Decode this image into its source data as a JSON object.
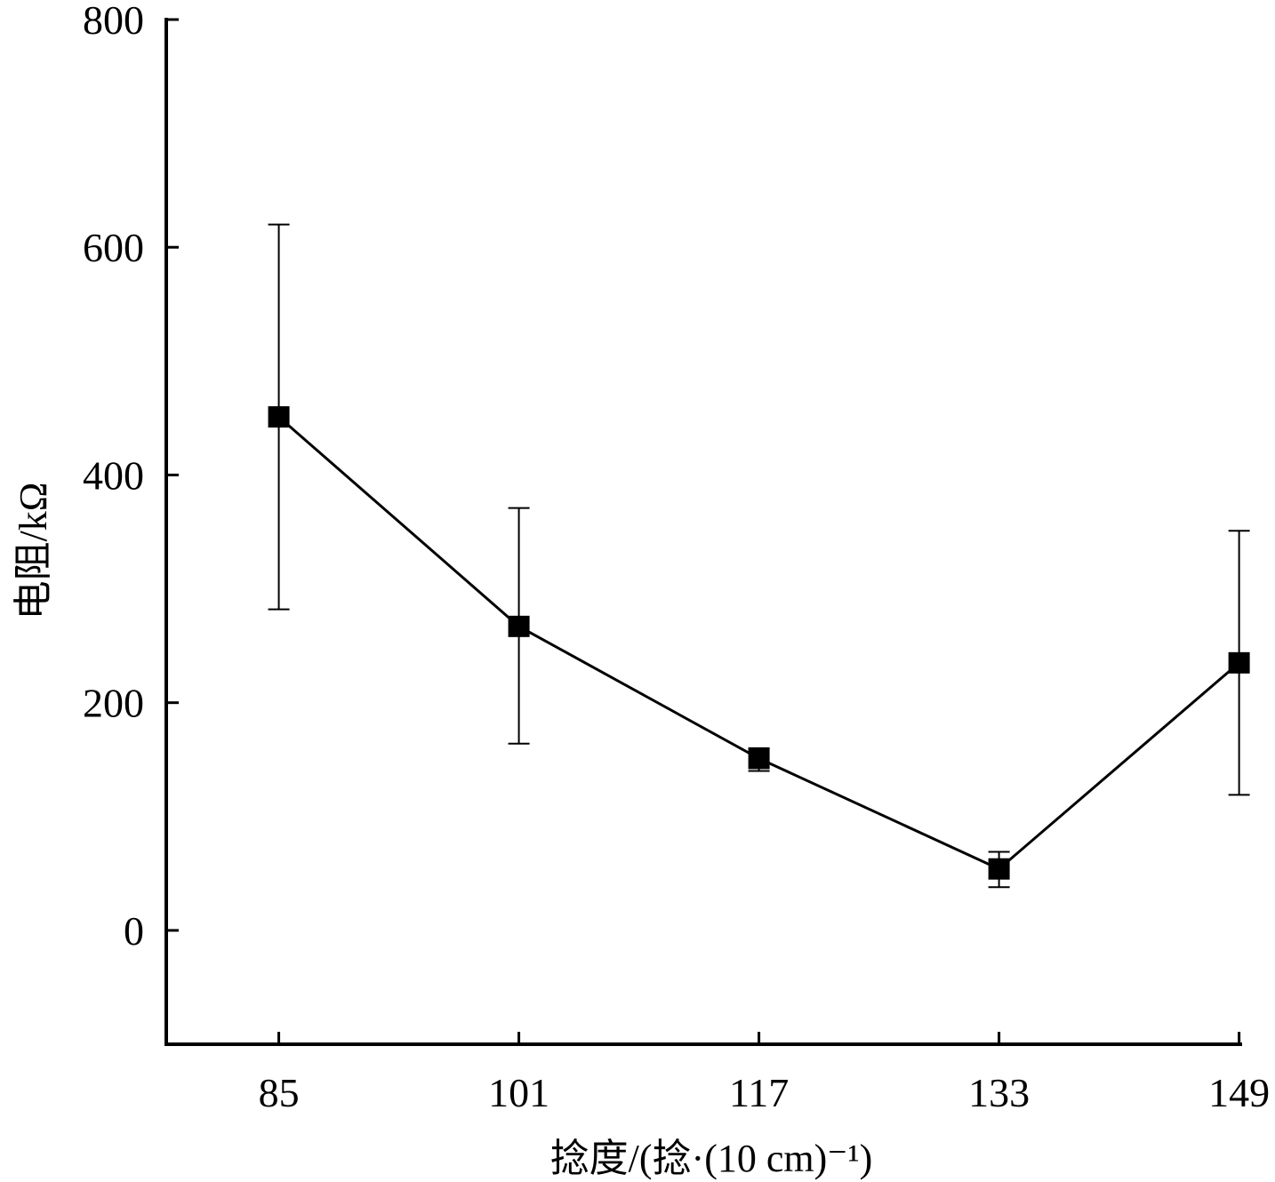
{
  "chart_data": {
    "type": "line",
    "title": "",
    "xlabel": "捻度/(捻·(10 cm)⁻¹)",
    "ylabel": "电阻/kΩ",
    "x": [
      85,
      101,
      117,
      133,
      149
    ],
    "x_tick_labels": [
      "85",
      "101",
      "117",
      "133",
      "149"
    ],
    "y_ticks": [
      0,
      200,
      400,
      600,
      800
    ],
    "y_tick_labels": [
      "0",
      "200",
      "400",
      "600",
      "800"
    ],
    "xlim": [
      77.5,
      149.2
    ],
    "ylim": [
      -100,
      800
    ],
    "grid": false,
    "series": [
      {
        "name": "电阻",
        "marker": "square",
        "color": "#000000",
        "values": [
          451,
          267,
          151,
          54,
          235
        ],
        "error_low": [
          282,
          164,
          140,
          38,
          119
        ],
        "error_high": [
          620,
          371,
          160,
          69,
          351
        ]
      }
    ]
  }
}
